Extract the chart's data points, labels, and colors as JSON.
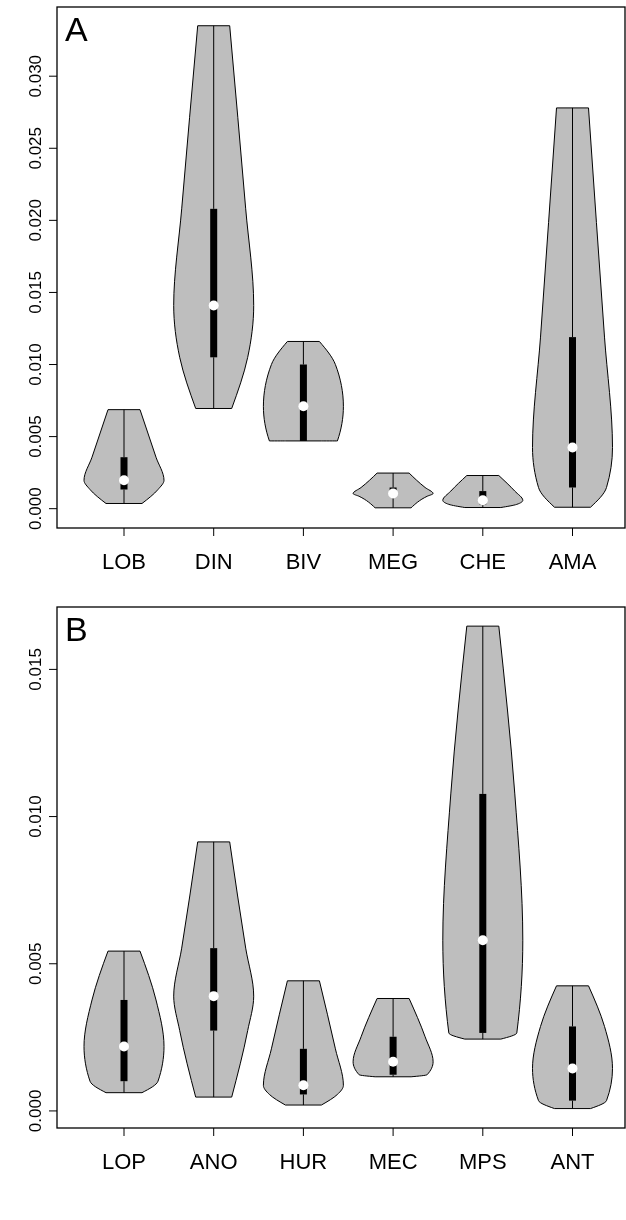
{
  "chart_data": [
    {
      "type": "box",
      "title": "A",
      "categories": [
        "LOB",
        "DIN",
        "BIV",
        "MEG",
        "CHE",
        "AMA"
      ],
      "ylim": [
        -0.00134,
        0.0348
      ],
      "yticks": [
        {
          "value": 0,
          "label": "0.000"
        },
        {
          "value": 0.005,
          "label": "0.005"
        },
        {
          "value": 0.01,
          "label": "0.010"
        },
        {
          "value": 0.015,
          "label": "0.015"
        },
        {
          "value": 0.02,
          "label": "0.020"
        },
        {
          "value": 0.025,
          "label": "0.025"
        },
        {
          "value": 0.03,
          "label": "0.030"
        }
      ],
      "series": [
        {
          "color": "#000000",
          "boxes": [
            {
              "low": 0.00036,
              "q1": 0.00133,
              "median": 0.00197,
              "q3": 0.00357,
              "high": 0.00687
            },
            {
              "low": 0.00695,
              "q1": 0.0105,
              "median": 0.0141,
              "q3": 0.0208,
              "high": 0.0335
            },
            {
              "low": 0.0047,
              "q1": 0.0047,
              "median": 0.0071,
              "q3": 0.01,
              "high": 0.0116
            },
            {
              "low": 6e-05,
              "q1": 0.00086,
              "median": 0.00105,
              "q3": 0.00147,
              "high": 0.00247
            },
            {
              "low": 8e-05,
              "q1": 0.0003,
              "median": 0.00058,
              "q3": 0.00122,
              "high": 0.0023
            },
            {
              "low": 0.0001,
              "q1": 0.00147,
              "median": 0.00424,
              "q3": 0.0119,
              "high": 0.0278
            }
          ]
        }
      ]
    },
    {
      "type": "box",
      "title": "B",
      "categories": [
        "LOP",
        "ANO",
        "HUR",
        "MEC",
        "MPS",
        "ANT"
      ],
      "ylim": [
        -0.00058,
        0.01712
      ],
      "yticks": [
        {
          "value": 0,
          "label": "0.000"
        },
        {
          "value": 0.005,
          "label": "0.005"
        },
        {
          "value": 0.01,
          "label": "0.010"
        },
        {
          "value": 0.015,
          "label": "0.015"
        }
      ],
      "series": [
        {
          "color": "#000000",
          "boxes": [
            {
              "low": 0.00062,
              "q1": 0.00101,
              "median": 0.00219,
              "q3": 0.00377,
              "high": 0.00543
            },
            {
              "low": 0.00047,
              "q1": 0.00273,
              "median": 0.0039,
              "q3": 0.00553,
              "high": 0.00914
            },
            {
              "low": 0.0002,
              "q1": 0.00056,
              "median": 0.00087,
              "q3": 0.00211,
              "high": 0.00442
            },
            {
              "low": 0.00116,
              "q1": 0.00123,
              "median": 0.00167,
              "q3": 0.00252,
              "high": 0.00382
            },
            {
              "low": 0.00244,
              "q1": 0.00265,
              "median": 0.0058,
              "q3": 0.01077,
              "high": 0.01647
            },
            {
              "low": 8e-05,
              "q1": 0.00035,
              "median": 0.00144,
              "q3": 0.00287,
              "high": 0.00425
            }
          ]
        }
      ]
    }
  ]
}
